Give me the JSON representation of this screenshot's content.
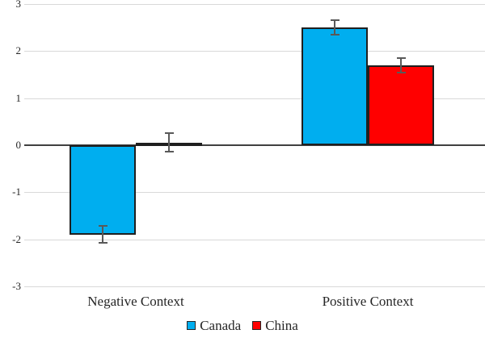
{
  "chart_data": {
    "type": "bar",
    "title": "",
    "xlabel": "",
    "ylabel": "",
    "categories": [
      "Negative Context",
      "Positive Context"
    ],
    "series": [
      {
        "name": "Canada",
        "color": "#00AEEF",
        "values": [
          -1.9,
          2.5
        ],
        "errors": [
          0.18,
          0.15
        ]
      },
      {
        "name": "China",
        "color": "#FF0000",
        "values": [
          0.06,
          1.7
        ],
        "errors": [
          0.2,
          0.16
        ]
      }
    ],
    "ylim": [
      -3,
      3
    ],
    "yticks": [
      3,
      2,
      1,
      0,
      -1,
      -2,
      -3
    ],
    "grid": true,
    "gridline_color": "#d9d9d9",
    "zero_line_color": "#404040",
    "error_bar_color": "#595959",
    "legend_position": "bottom",
    "legend": [
      {
        "label": "Canada",
        "color": "#00AEEF"
      },
      {
        "label": "China",
        "color": "#FF0000"
      }
    ]
  }
}
